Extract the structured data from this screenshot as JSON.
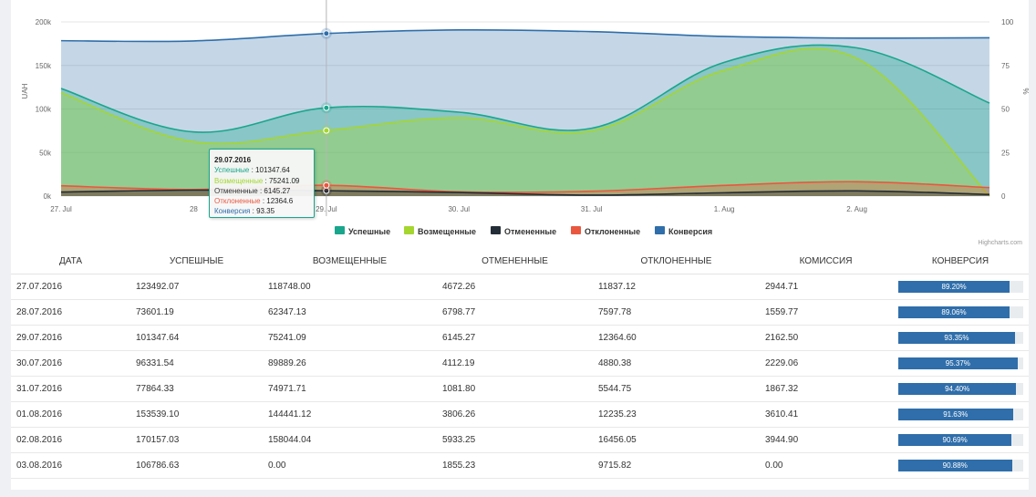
{
  "colors": {
    "success": "#19a68c",
    "refunded": "#a5d62f",
    "cancelled": "#232d37",
    "declined": "#e9573f",
    "conversion": "#2f6eaa"
  },
  "chart_data": {
    "type": "area",
    "categories": [
      "27. Jul",
      "28. Jul",
      "29. Jul",
      "30. Jul",
      "31. Jul",
      "1. Aug",
      "2. Aug",
      "3. Aug"
    ],
    "x_labels_visible": [
      "27. Jul",
      "28",
      "29. Jul",
      "30. Jul",
      "31. Jul",
      "1. Aug",
      "2. Aug"
    ],
    "y_left": {
      "title": "UAH",
      "ticks": [
        "0k",
        "50k",
        "100k",
        "150k",
        "200k"
      ],
      "range": [
        0,
        200000
      ]
    },
    "y_right": {
      "title": "%",
      "ticks": [
        "0",
        "25",
        "50",
        "75",
        "100"
      ],
      "range": [
        0,
        100
      ]
    },
    "series": [
      {
        "name": "Успешные",
        "color_key": "success",
        "axis": "left",
        "values": [
          123492.07,
          73601.19,
          101347.64,
          96331.54,
          77864.33,
          153539.1,
          170157.03,
          106786.63
        ]
      },
      {
        "name": "Возмещенные",
        "color_key": "refunded",
        "axis": "left",
        "values": [
          118748.0,
          62347.13,
          75241.09,
          89889.26,
          74971.71,
          144441.12,
          158044.04,
          0.0
        ]
      },
      {
        "name": "Отмененные",
        "color_key": "cancelled",
        "axis": "left",
        "values": [
          4672.26,
          6798.77,
          6145.27,
          4112.19,
          1081.8,
          3806.26,
          5933.25,
          1855.23
        ]
      },
      {
        "name": "Отклоненные",
        "color_key": "declined",
        "axis": "left",
        "values": [
          11837.12,
          7597.78,
          12364.6,
          4880.38,
          5544.75,
          12235.23,
          16456.05,
          9715.82
        ]
      },
      {
        "name": "Конверсия",
        "color_key": "conversion",
        "axis": "right",
        "values": [
          89.2,
          89.06,
          93.35,
          95.37,
          94.4,
          91.63,
          90.69,
          90.88
        ]
      }
    ],
    "legend_position": "bottom-center",
    "hover_index": 2,
    "credits": "Highcharts.com",
    "tooltip": {
      "date": "29.07.2016",
      "rows": [
        {
          "label": "Успешные",
          "value": "101347.64",
          "color_key": "success"
        },
        {
          "label": "Возмещенные",
          "value": "75241.09",
          "color_key": "refunded"
        },
        {
          "label": "Отмененные",
          "value": "6145.27",
          "color_key": "cancelled"
        },
        {
          "label": "Отклоненные",
          "value": "12364.6",
          "color_key": "declined"
        },
        {
          "label": "Конверсия",
          "value": "93.35",
          "color_key": "conversion"
        }
      ]
    }
  },
  "table": {
    "headers": [
      "ДАТА",
      "УСПЕШНЫЕ",
      "ВОЗМЕЩЕННЫЕ",
      "ОТМЕНЕННЫЕ",
      "ОТКЛОНЕННЫЕ",
      "КОМИССИЯ",
      "КОНВЕРСИЯ"
    ],
    "rows": [
      {
        "date": "27.07.2016",
        "success": "123492.07",
        "refunded": "118748.00",
        "cancelled": "4672.26",
        "declined": "11837.12",
        "commission": "2944.71",
        "conversion": "89.20%",
        "conversion_value": 89.2
      },
      {
        "date": "28.07.2016",
        "success": "73601.19",
        "refunded": "62347.13",
        "cancelled": "6798.77",
        "declined": "7597.78",
        "commission": "1559.77",
        "conversion": "89.06%",
        "conversion_value": 89.06
      },
      {
        "date": "29.07.2016",
        "success": "101347.64",
        "refunded": "75241.09",
        "cancelled": "6145.27",
        "declined": "12364.60",
        "commission": "2162.50",
        "conversion": "93.35%",
        "conversion_value": 93.35
      },
      {
        "date": "30.07.2016",
        "success": "96331.54",
        "refunded": "89889.26",
        "cancelled": "4112.19",
        "declined": "4880.38",
        "commission": "2229.06",
        "conversion": "95.37%",
        "conversion_value": 95.37
      },
      {
        "date": "31.07.2016",
        "success": "77864.33",
        "refunded": "74971.71",
        "cancelled": "1081.80",
        "declined": "5544.75",
        "commission": "1867.32",
        "conversion": "94.40%",
        "conversion_value": 94.4
      },
      {
        "date": "01.08.2016",
        "success": "153539.10",
        "refunded": "144441.12",
        "cancelled": "3806.26",
        "declined": "12235.23",
        "commission": "3610.41",
        "conversion": "91.63%",
        "conversion_value": 91.63
      },
      {
        "date": "02.08.2016",
        "success": "170157.03",
        "refunded": "158044.04",
        "cancelled": "5933.25",
        "declined": "16456.05",
        "commission": "3944.90",
        "conversion": "90.69%",
        "conversion_value": 90.69
      },
      {
        "date": "03.08.2016",
        "success": "106786.63",
        "refunded": "0.00",
        "cancelled": "1855.23",
        "declined": "9715.82",
        "commission": "0.00",
        "conversion": "90.88%",
        "conversion_value": 90.88
      }
    ]
  }
}
